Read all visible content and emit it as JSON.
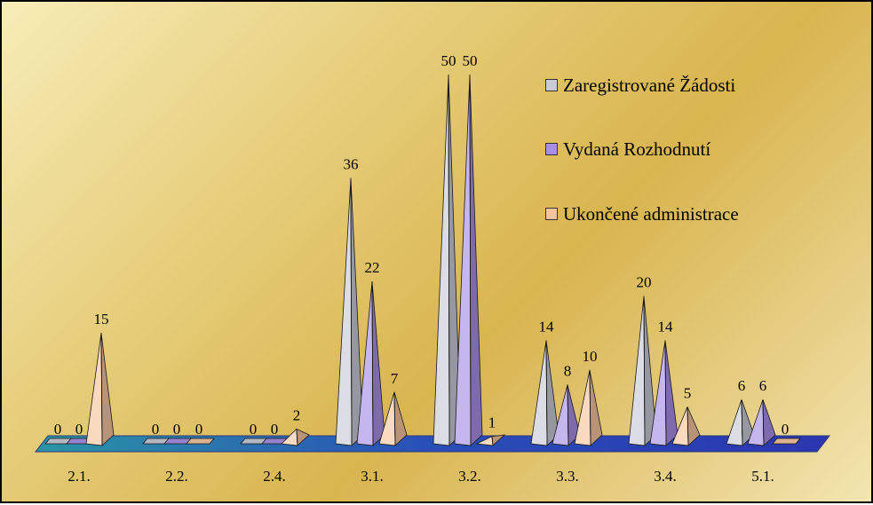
{
  "chart_data": {
    "type": "bar",
    "categories": [
      "2.1.",
      "2.2.",
      "2.4.",
      "3.1.",
      "3.2.",
      "3.3.",
      "3.4.",
      "5.1."
    ],
    "series": [
      {
        "name": "Zaregistrované Žádosti",
        "values": [
          0,
          0,
          0,
          36,
          50,
          14,
          20,
          6
        ],
        "labels": [
          "0",
          "0",
          "0",
          "36",
          "50",
          "14",
          "20",
          "6"
        ],
        "color": "#c8cbd6"
      },
      {
        "name": "Vydaná Rozhodnutí",
        "values": [
          0,
          0,
          0,
          22,
          50,
          8,
          14,
          6
        ],
        "labels": [
          "0",
          "0",
          "0",
          "22",
          "50",
          "8",
          "14",
          "6"
        ],
        "color": "#a88ee6"
      },
      {
        "name": "Ukončené administrace",
        "values": [
          15,
          0,
          2,
          7,
          1,
          10,
          5,
          0
        ],
        "labels": [
          "15",
          "0",
          "2",
          "7",
          "1",
          "10",
          "5",
          "0"
        ],
        "color": "#f5c49e"
      }
    ],
    "ylim": [
      0,
      50
    ],
    "legend": "top-right",
    "grid": false,
    "title": "",
    "xlabel": "",
    "ylabel": ""
  }
}
